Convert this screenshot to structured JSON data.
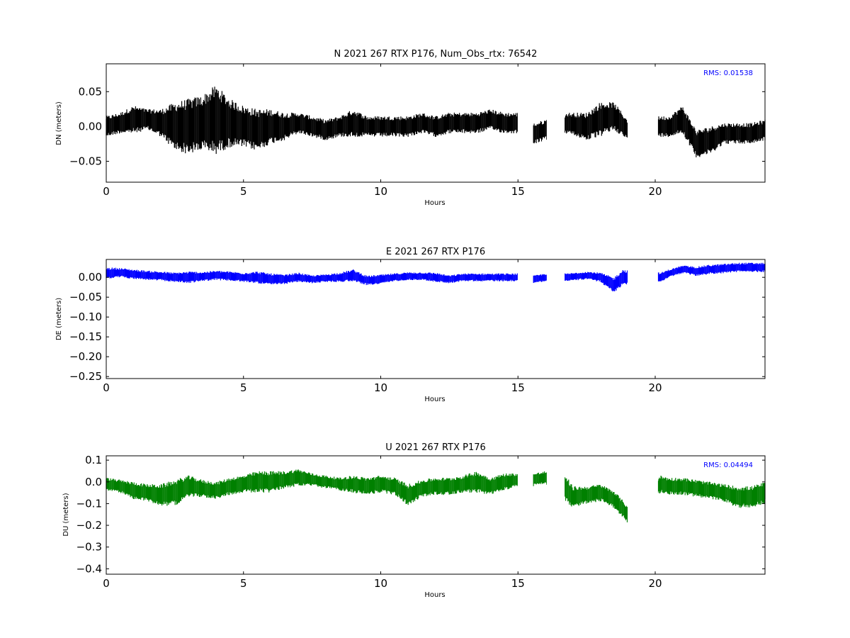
{
  "chart_data": [
    {
      "type": "scatter",
      "title": "N 2021 267 RTX  P176, Num_Obs_rtx: 76542",
      "xlabel": "Hours",
      "ylabel": "DN (meters)",
      "xlim": [
        0,
        24
      ],
      "ylim": [
        -0.08,
        0.09
      ],
      "xticks": [
        0,
        5,
        10,
        15,
        20
      ],
      "yticks": [
        -0.05,
        0.0,
        0.05
      ],
      "ytick_labels": [
        "−0.05",
        "0.00",
        "0.05"
      ],
      "color": "#000000",
      "annotation": "RMS:  0.01538",
      "annotation_color": "#0000ff",
      "gaps": [
        [
          15.0,
          15.55
        ],
        [
          16.05,
          16.7
        ],
        [
          19.0,
          20.1
        ]
      ],
      "series": [
        {
          "x": [
            0,
            0.5,
            1,
            1.5,
            2,
            2.5,
            3,
            3.5,
            4,
            4.5,
            5,
            5.5,
            6,
            6.5,
            7,
            7.5,
            8,
            8.5,
            9,
            9.5,
            10,
            10.5,
            11,
            11.5,
            12,
            12.5,
            13,
            13.5,
            14,
            14.5,
            15,
            15.6,
            16,
            16.8,
            17.5,
            18,
            18.5,
            19,
            20.2,
            20.5,
            21,
            21.5,
            22,
            22.5,
            23,
            23.5,
            24
          ],
          "y": [
            0.0,
            0.005,
            0.01,
            0.01,
            0.005,
            0.0,
            0.0,
            0.005,
            0.01,
            0.005,
            0.0,
            -0.005,
            0.0,
            0.0,
            0.005,
            0.0,
            -0.005,
            0.0,
            0.005,
            0.0,
            0.0,
            0.0,
            0.0,
            0.005,
            0.0,
            0.005,
            0.005,
            0.005,
            0.01,
            0.005,
            0.005,
            -0.01,
            -0.005,
            0.005,
            0.0,
            0.01,
            0.015,
            -0.005,
            0.0,
            0.0,
            0.01,
            -0.025,
            -0.02,
            -0.01,
            -0.01,
            -0.01,
            -0.005
          ],
          "spread": [
            0.015,
            0.015,
            0.02,
            0.015,
            0.02,
            0.035,
            0.04,
            0.04,
            0.05,
            0.035,
            0.03,
            0.03,
            0.025,
            0.02,
            0.015,
            0.015,
            0.015,
            0.015,
            0.02,
            0.015,
            0.015,
            0.015,
            0.015,
            0.015,
            0.015,
            0.015,
            0.015,
            0.015,
            0.015,
            0.015,
            0.015,
            0.015,
            0.015,
            0.015,
            0.02,
            0.025,
            0.02,
            0.015,
            0.015,
            0.015,
            0.02,
            0.02,
            0.02,
            0.015,
            0.015,
            0.015,
            0.015
          ]
        }
      ]
    },
    {
      "type": "scatter",
      "title": "E 2021 267 RTX  P176",
      "xlabel": "Hours",
      "ylabel": "DE (meters)",
      "xlim": [
        0,
        24
      ],
      "ylim": [
        -0.255,
        0.045
      ],
      "xticks": [
        0,
        5,
        10,
        15,
        20
      ],
      "yticks": [
        -0.25,
        -0.2,
        -0.15,
        -0.1,
        -0.05,
        0.0
      ],
      "ytick_labels": [
        "−0.25",
        "−0.20",
        "−0.15",
        "−0.10",
        "−0.05",
        "0.00"
      ],
      "color": "#0000ff",
      "annotation": "",
      "annotation_color": "#0000ff",
      "gaps": [
        [
          15.0,
          15.55
        ],
        [
          16.05,
          16.7
        ],
        [
          19.0,
          20.1
        ]
      ],
      "series": [
        {
          "x": [
            0,
            0.5,
            1,
            1.5,
            2,
            2.5,
            3,
            3.5,
            4,
            4.5,
            5,
            5.5,
            6,
            6.5,
            7,
            7.5,
            8,
            8.5,
            9,
            9.5,
            10,
            10.5,
            11,
            11.5,
            12,
            12.5,
            13,
            13.5,
            14,
            14.5,
            15,
            15.6,
            16,
            16.8,
            17.5,
            18,
            18.5,
            18.8,
            20.2,
            20.5,
            21,
            21.5,
            22,
            22.5,
            23,
            23.5,
            24
          ],
          "y": [
            0.01,
            0.012,
            0.008,
            0.005,
            0.003,
            0.0,
            0.0,
            0.002,
            0.005,
            0.003,
            0.0,
            0.0,
            -0.005,
            -0.005,
            0.0,
            -0.005,
            -0.002,
            0.0,
            0.005,
            -0.008,
            -0.005,
            0.0,
            0.003,
            0.003,
            0.0,
            -0.005,
            0.0,
            0.0,
            0.0,
            0.0,
            0.0,
            -0.005,
            0.0,
            0.0,
            0.005,
            0.0,
            -0.02,
            0.0,
            0.0,
            0.01,
            0.02,
            0.015,
            0.02,
            0.022,
            0.025,
            0.025,
            0.025
          ],
          "spread": [
            0.015,
            0.012,
            0.012,
            0.012,
            0.012,
            0.012,
            0.015,
            0.012,
            0.012,
            0.012,
            0.012,
            0.015,
            0.015,
            0.012,
            0.012,
            0.01,
            0.01,
            0.012,
            0.015,
            0.012,
            0.012,
            0.01,
            0.01,
            0.01,
            0.012,
            0.01,
            0.01,
            0.01,
            0.01,
            0.01,
            0.01,
            0.01,
            0.01,
            0.01,
            0.01,
            0.012,
            0.02,
            0.02,
            0.012,
            0.01,
            0.01,
            0.012,
            0.012,
            0.012,
            0.012,
            0.012,
            0.012
          ]
        }
      ]
    },
    {
      "type": "scatter",
      "title": "U 2021 267 RTX  P176",
      "xlabel": "Hours",
      "ylabel": "DU (meters)",
      "xlim": [
        0,
        24
      ],
      "ylim": [
        -0.425,
        0.12
      ],
      "xticks": [
        0,
        5,
        10,
        15,
        20
      ],
      "yticks": [
        -0.4,
        -0.3,
        -0.2,
        -0.1,
        0.0,
        0.1
      ],
      "ytick_labels": [
        "−0.4",
        "−0.3",
        "−0.2",
        "−0.1",
        "0.0",
        "0.1"
      ],
      "color": "#008000",
      "annotation": "RMS:  0.04494",
      "annotation_color": "#0000ff",
      "gaps": [
        [
          15.0,
          15.55
        ],
        [
          16.05,
          16.7
        ],
        [
          19.0,
          20.1
        ]
      ],
      "series": [
        {
          "x": [
            0,
            0.5,
            1,
            1.5,
            2,
            2.5,
            3,
            3.5,
            4,
            4.5,
            5,
            5.5,
            6,
            6.5,
            7,
            7.5,
            8,
            8.5,
            9,
            9.5,
            10,
            10.5,
            11,
            11.5,
            12,
            12.5,
            13,
            13.5,
            14,
            14.5,
            15,
            15.6,
            16,
            16.8,
            17,
            17.5,
            18,
            18.5,
            19,
            20.2,
            20.5,
            21,
            21.5,
            22,
            22.5,
            23,
            23.5,
            24
          ],
          "y": [
            -0.01,
            -0.02,
            -0.04,
            -0.05,
            -0.06,
            -0.05,
            -0.02,
            -0.03,
            -0.04,
            -0.02,
            -0.01,
            0.0,
            0.0,
            0.01,
            0.02,
            0.01,
            0.0,
            -0.01,
            -0.01,
            -0.02,
            -0.01,
            -0.02,
            -0.06,
            -0.03,
            -0.02,
            -0.02,
            -0.01,
            0.0,
            -0.02,
            0.0,
            0.01,
            0.01,
            0.02,
            -0.04,
            -0.07,
            -0.06,
            -0.05,
            -0.08,
            -0.15,
            -0.01,
            -0.02,
            -0.02,
            -0.03,
            -0.04,
            -0.05,
            -0.07,
            -0.07,
            -0.05
          ],
          "spread": [
            0.03,
            0.03,
            0.04,
            0.04,
            0.05,
            0.06,
            0.05,
            0.04,
            0.04,
            0.04,
            0.04,
            0.05,
            0.05,
            0.04,
            0.04,
            0.03,
            0.03,
            0.03,
            0.04,
            0.04,
            0.04,
            0.04,
            0.05,
            0.04,
            0.04,
            0.04,
            0.04,
            0.05,
            0.04,
            0.04,
            0.03,
            0.03,
            0.03,
            0.06,
            0.05,
            0.04,
            0.04,
            0.04,
            0.04,
            0.04,
            0.04,
            0.04,
            0.04,
            0.04,
            0.04,
            0.05,
            0.05,
            0.05
          ]
        }
      ]
    }
  ]
}
